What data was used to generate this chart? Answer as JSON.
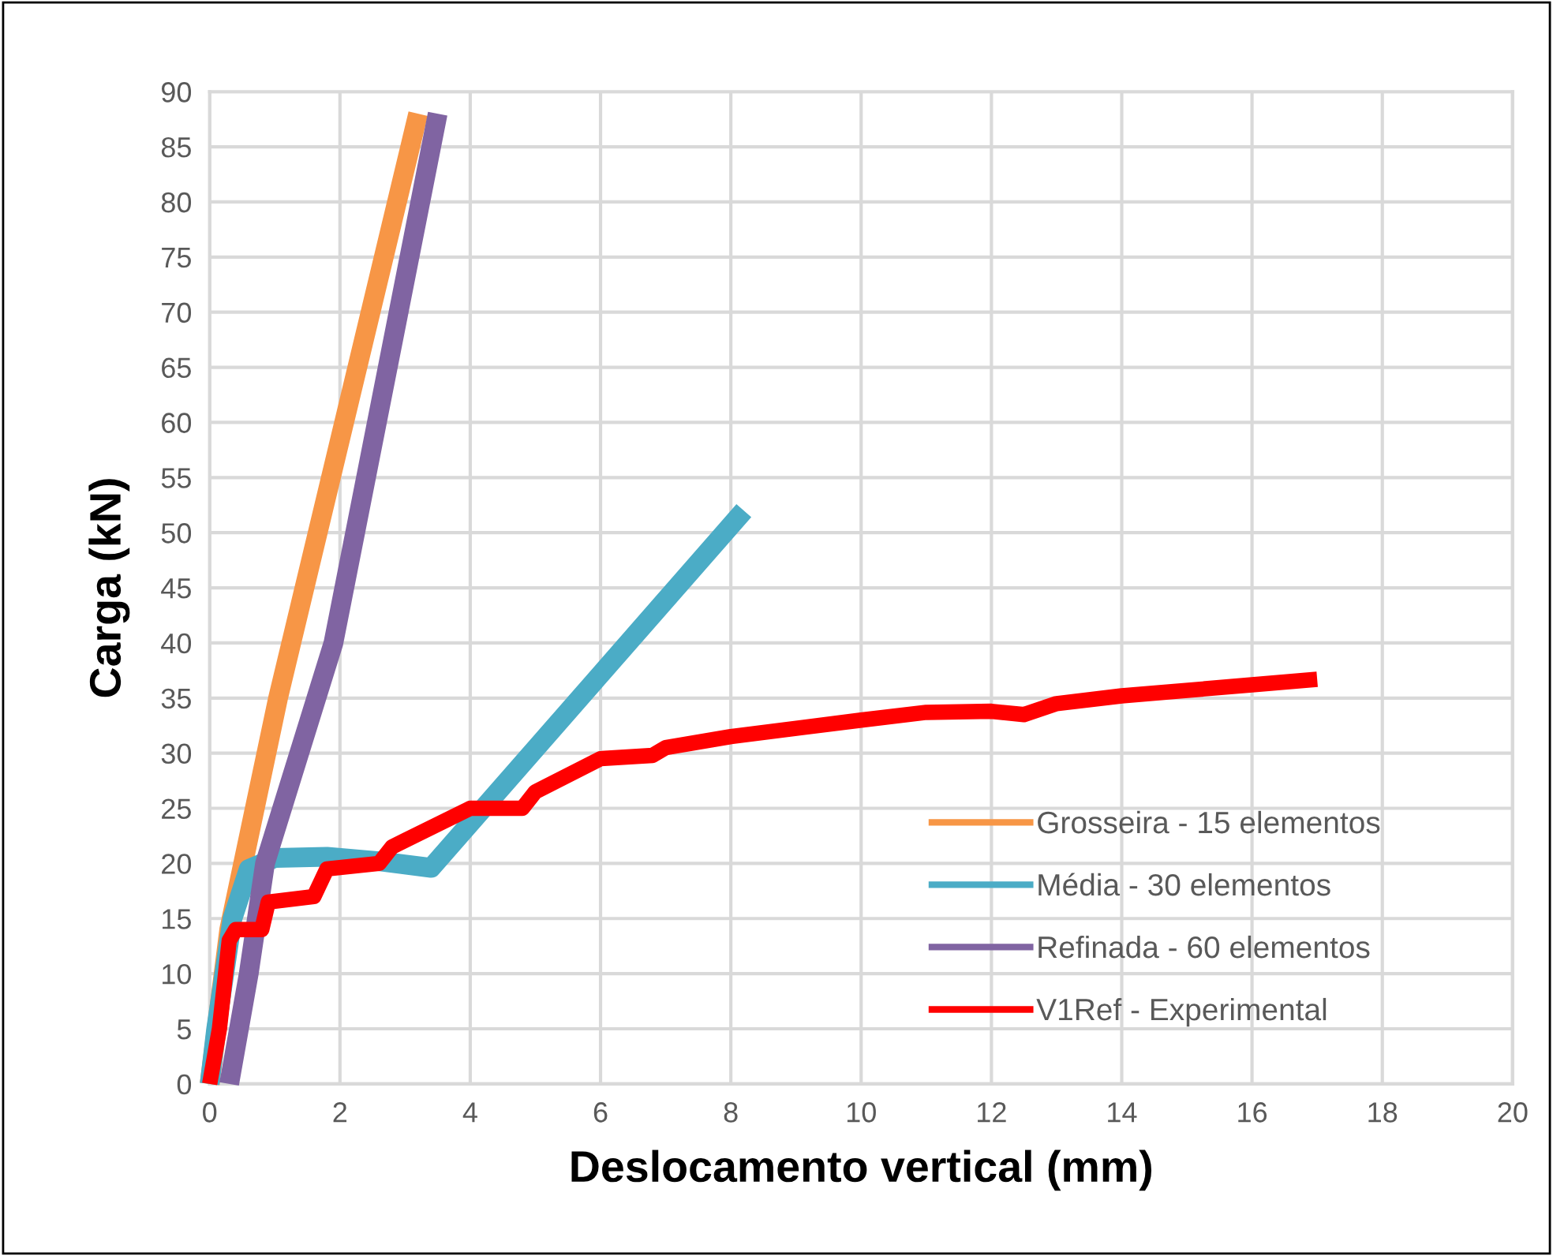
{
  "chart_data": {
    "type": "line",
    "xlabel": "Deslocamento vertical (mm)",
    "ylabel": "Carga (kN)",
    "xlim": [
      0,
      20
    ],
    "xticks": [
      0,
      2,
      4,
      6,
      8,
      10,
      12,
      14,
      16,
      18,
      20
    ],
    "ylim": [
      0,
      90
    ],
    "yticks": [
      0,
      5,
      10,
      15,
      20,
      25,
      30,
      35,
      40,
      45,
      50,
      55,
      60,
      65,
      70,
      75,
      80,
      85,
      90
    ],
    "grid": true,
    "legend": "bottom right",
    "marker": "none",
    "line_style": "solid",
    "series": [
      {
        "name": "Grosseira - 15 elementos",
        "color": "#f79646",
        "x": [
          0,
          0.3,
          1.05,
          3.2
        ],
        "values": [
          0,
          14,
          35,
          88
        ]
      },
      {
        "name": "Média - 30 elementos",
        "color": "#4bacc6",
        "x": [
          0,
          0.1,
          0.35,
          0.6,
          1.0,
          1.8,
          2.6,
          3.4,
          8.2
        ],
        "values": [
          0,
          5,
          15,
          19.5,
          20.5,
          20.6,
          20.2,
          19.6,
          52
        ]
      },
      {
        "name": "Refinada - 60 elementos",
        "color": "#8064a2",
        "x": [
          0.3,
          0.6,
          0.85,
          1.9,
          3.5
        ],
        "values": [
          0,
          10,
          20,
          40,
          88
        ]
      },
      {
        "name": "V1Ref - Experimental",
        "color": "#ff0000",
        "x": [
          0,
          0.15,
          0.3,
          0.4,
          0.8,
          0.9,
          1.6,
          1.8,
          2.6,
          2.8,
          4,
          4.8,
          5,
          6,
          6.8,
          7,
          8,
          10,
          11,
          12,
          12.5,
          13,
          14,
          16,
          17
        ],
        "values": [
          0,
          5,
          13,
          14,
          14,
          16.5,
          17,
          19.5,
          20,
          21.5,
          25,
          25,
          26.5,
          29.5,
          29.8,
          30.5,
          31.5,
          33,
          33.7,
          33.8,
          33.5,
          34.5,
          35.2,
          36.2,
          36.7
        ]
      }
    ]
  }
}
